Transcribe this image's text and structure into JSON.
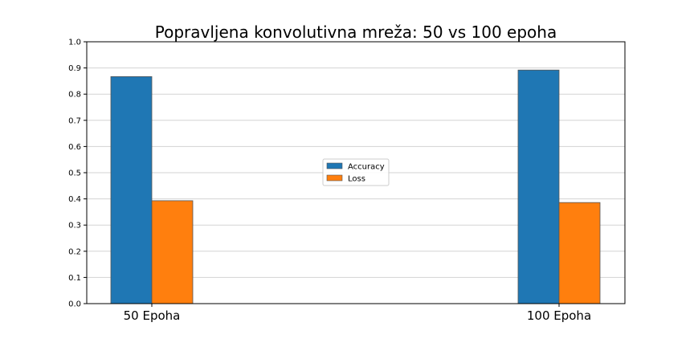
{
  "chart_data": {
    "type": "bar",
    "title": "Popravljena konvolutivna mreža: 50 vs 100 epoha",
    "xlabel": "",
    "ylabel": "",
    "categories": [
      "50 Epoha",
      "100 Epoha"
    ],
    "series": [
      {
        "name": "Accuracy",
        "values": [
          0.867,
          0.892
        ],
        "color": "#1f77b4"
      },
      {
        "name": "Loss",
        "values": [
          0.393,
          0.386
        ],
        "color": "#ff7f0e"
      }
    ],
    "ylim": [
      0.0,
      1.0
    ],
    "yticks": [
      "0.0",
      "0.1",
      "0.2",
      "0.3",
      "0.4",
      "0.5",
      "0.6",
      "0.7",
      "0.8",
      "0.9",
      "1.0"
    ],
    "grid": "horizontal",
    "legend_position": "center"
  }
}
